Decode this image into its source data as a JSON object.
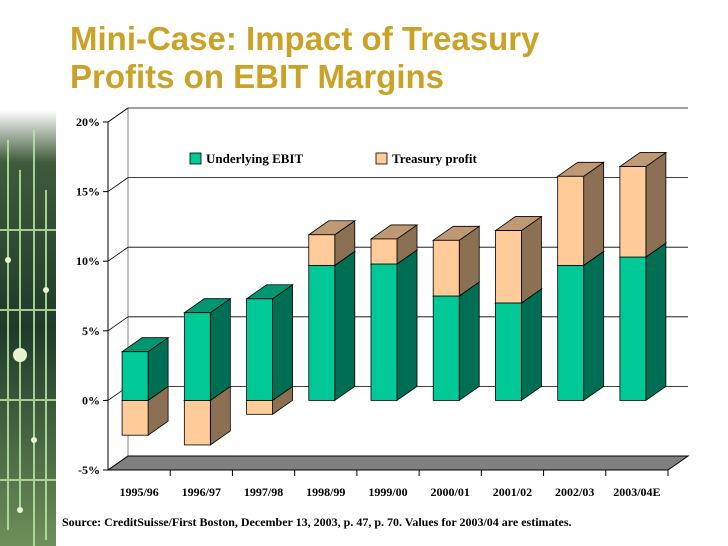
{
  "title_line1": "Mini-Case:  Impact of Treasury",
  "title_line2": "Profits on EBIT Margins",
  "source": "Source: CreditSuisse/First Boston, December 13, 2003, p. 47, p. 70. Values for 2003/04 are estimates.",
  "colors": {
    "title": "#c9a227",
    "ebit": "#00c896",
    "treasury": "#ffcc99",
    "floor": "#808080"
  },
  "chart_data": {
    "type": "bar",
    "stacked": true,
    "categories": [
      "1995/96",
      "1996/97",
      "1997/98",
      "1998/99",
      "1999/00",
      "2000/01",
      "2001/02",
      "2002/03",
      "2003/04E"
    ],
    "series": [
      {
        "name": "Underlying EBIT",
        "values": [
          3.5,
          6.3,
          7.3,
          9.7,
          9.8,
          7.5,
          7.0,
          9.7,
          10.3
        ]
      },
      {
        "name": "Treasury profit",
        "values": [
          -2.5,
          -3.2,
          -1.0,
          2.2,
          1.8,
          4.0,
          5.2,
          6.4,
          6.5
        ]
      }
    ],
    "yticks": [
      "20%",
      "15%",
      "10%",
      "5%",
      "0%",
      "-5%"
    ],
    "ylim": [
      -5,
      20
    ],
    "gridlines": true,
    "legend_position": "top-center"
  }
}
